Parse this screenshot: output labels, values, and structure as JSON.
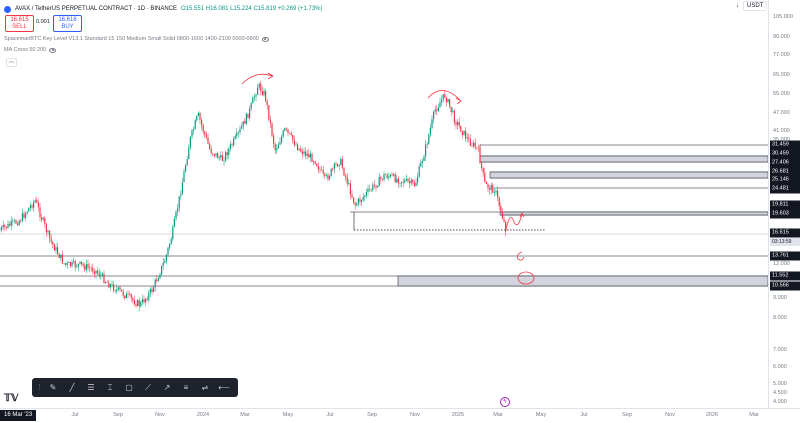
{
  "legend": {
    "symbol": "AVAX / TetherUS PERPETUAL CONTRACT · 1D · BINANCE",
    "ohlc": "O15.551 H16.081 L15.224 C15.819 +0.269 (+1.73%)"
  },
  "trade": {
    "sell_price": "16.615",
    "sell_label": "SELL",
    "spread": "0.001",
    "buy_price": "16.616",
    "buy_label": "BUY"
  },
  "studies": [
    "SpacemanBTC Key Level V13.1 Standard 15 150 Medium Small Solid 0800-1600 1400-2100 0000-0900",
    "MA Cross 50 200"
  ],
  "top_right": {
    "arrow": "↓",
    "currency": "USDT"
  },
  "icons": {
    "eye": "eye-icon",
    "collapse": "chevron-up-icon",
    "event": "lightning-icon",
    "logo": "tradingview-logo-icon"
  },
  "price_axis": {
    "ticks": [
      "105.000",
      "90.000",
      "77.000",
      "65.000",
      "55.000",
      "47.000",
      "41.000",
      "35.000",
      "12.000",
      "9.000",
      "8.000",
      "7.000",
      "6.000",
      "5.000",
      "4.500",
      "4.000"
    ],
    "labels": [
      "31.459",
      "30.459",
      "27.406",
      "26.681",
      "25.146",
      "24.481",
      "19.811",
      "19.603",
      "16.615",
      "13.761",
      "11.552",
      "10.566"
    ],
    "countdown": "03:13:59"
  },
  "time_axis": {
    "ticks": [
      "Jul",
      "Sep",
      "Nov",
      "2024",
      "Mar",
      "May",
      "Jul",
      "Sep",
      "Nov",
      "2025",
      "Mar",
      "May",
      "Jul",
      "Sep",
      "Nov",
      "2026",
      "Mar"
    ],
    "date_badge": "16 Mar '23"
  },
  "toolbar": {
    "tools": [
      "grip",
      "brush",
      "trend-line",
      "horizontal-lines",
      "text-tool",
      "rectangle",
      "path",
      "ray",
      "parallel-channel",
      "fib-retracement",
      "long-arrow"
    ]
  },
  "colors": {
    "up": "#089981",
    "down": "#f23645",
    "annotation": "#f23645",
    "zone": "#d1d4dc",
    "accent": "#2962ff"
  }
}
